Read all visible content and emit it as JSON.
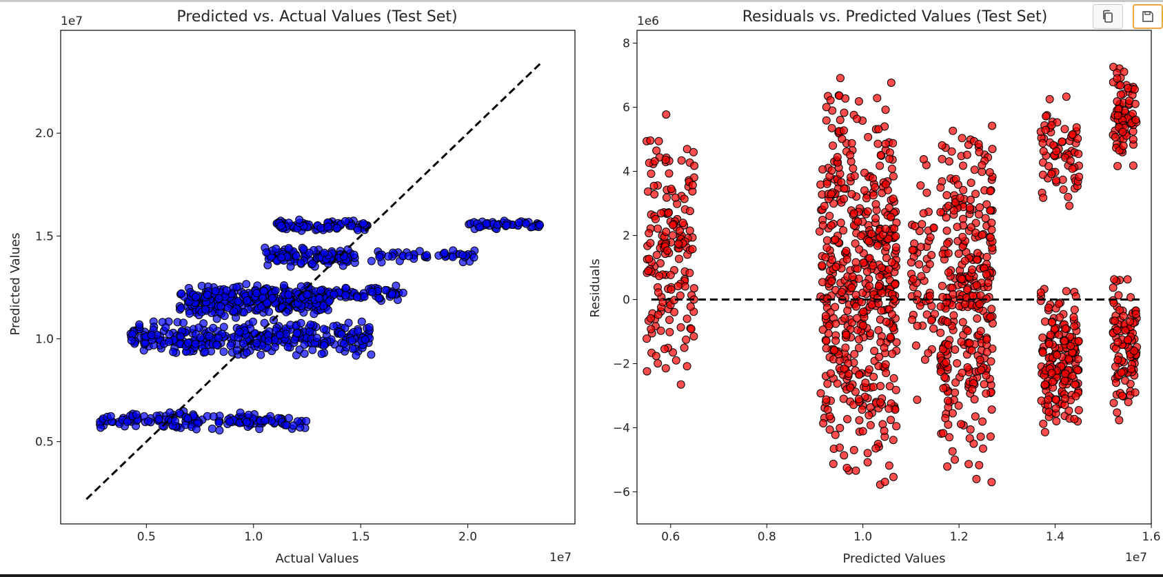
{
  "toolbar": {
    "copy_icon": "copy-icon",
    "save_icon": "save-icon",
    "accent": "#f0a23c"
  },
  "chart_data": [
    {
      "type": "scatter",
      "title": "Predicted vs. Actual Values (Test Set)",
      "xlabel": "Actual Values",
      "ylabel": "Predicted Values",
      "x_offset_label": "1e7",
      "y_offset_label": "1e7",
      "xlim": [
        0.1,
        2.5
      ],
      "ylim": [
        0.1,
        2.5
      ],
      "xticks": [
        0.5,
        1.0,
        1.5,
        2.0
      ],
      "yticks": [
        0.5,
        1.0,
        1.5,
        2.0
      ],
      "xtick_labels": [
        "0.5",
        "1.0",
        "1.5",
        "2.0"
      ],
      "ytick_labels": [
        "0.5",
        "1.0",
        "1.5",
        "2.0"
      ],
      "grid": false,
      "marker_color": "#0000ff",
      "marker_edge": "#000000",
      "reference_line": {
        "from": [
          0.22,
          0.22
        ],
        "to": [
          2.35,
          2.35
        ],
        "style": "dashed",
        "color": "#000000"
      },
      "clusters": [
        {
          "x": [
            0.28,
            1.25
          ],
          "y": [
            0.55,
            0.65
          ],
          "n": 150
        },
        {
          "x": [
            0.42,
            1.55
          ],
          "y": [
            0.91,
            1.1
          ],
          "n": 330
        },
        {
          "x": [
            0.65,
            1.35
          ],
          "y": [
            1.1,
            1.25
          ],
          "n": 210
        },
        {
          "x": [
            0.7,
            1.7
          ],
          "y": [
            1.17,
            1.27
          ],
          "n": 160
        },
        {
          "x": [
            1.05,
            1.48
          ],
          "y": [
            1.35,
            1.45
          ],
          "n": 110
        },
        {
          "x": [
            1.1,
            1.55
          ],
          "y": [
            1.52,
            1.58
          ],
          "n": 85
        },
        {
          "x": [
            1.55,
            2.05
          ],
          "y": [
            1.37,
            1.44
          ],
          "n": 45
        },
        {
          "x": [
            2.0,
            2.35
          ],
          "y": [
            1.53,
            1.58
          ],
          "n": 45
        }
      ]
    },
    {
      "type": "scatter",
      "title": "Residuals vs. Predicted Values (Test Set)",
      "xlabel": "Predicted Values",
      "ylabel": "Residuals",
      "x_offset_label": "1e7",
      "y_offset_label": "1e6",
      "xlim": [
        0.53,
        1.6
      ],
      "ylim": [
        -7.0,
        8.4
      ],
      "xticks": [
        0.6,
        0.8,
        1.0,
        1.2,
        1.4,
        1.6
      ],
      "yticks": [
        -6,
        -4,
        -2,
        0,
        2,
        4,
        6,
        8
      ],
      "xtick_labels": [
        "0.6",
        "0.8",
        "1.0",
        "1.2",
        "1.4",
        "1.6"
      ],
      "ytick_labels": [
        "−6",
        "−4",
        "−2",
        "0",
        "2",
        "4",
        "6",
        "8"
      ],
      "grid": false,
      "marker_color": "#ff0000",
      "marker_edge": "#000000",
      "reference_line": {
        "from": [
          0.56,
          0.0
        ],
        "to": [
          1.58,
          0.0
        ],
        "style": "dashed",
        "color": "#000000"
      },
      "clusters": [
        {
          "x": [
            0.55,
            0.65
          ],
          "y": [
            -3.0,
            6.0
          ],
          "n": 170
        },
        {
          "x": [
            0.91,
            1.07
          ],
          "y": [
            -6.3,
            7.2
          ],
          "n": 520
        },
        {
          "x": [
            1.1,
            1.15
          ],
          "y": [
            -3.5,
            4.7
          ],
          "n": 60
        },
        {
          "x": [
            1.16,
            1.27
          ],
          "y": [
            -6.1,
            6.1
          ],
          "n": 330
        },
        {
          "x": [
            1.37,
            1.45
          ],
          "y": [
            -4.2,
            0.5
          ],
          "n": 170
        },
        {
          "x": [
            1.37,
            1.45
          ],
          "y": [
            2.6,
            6.6
          ],
          "n": 70
        },
        {
          "x": [
            1.52,
            1.57
          ],
          "y": [
            -4.0,
            1.0
          ],
          "n": 100
        },
        {
          "x": [
            1.52,
            1.57
          ],
          "y": [
            3.6,
            7.6
          ],
          "n": 80
        }
      ]
    }
  ]
}
